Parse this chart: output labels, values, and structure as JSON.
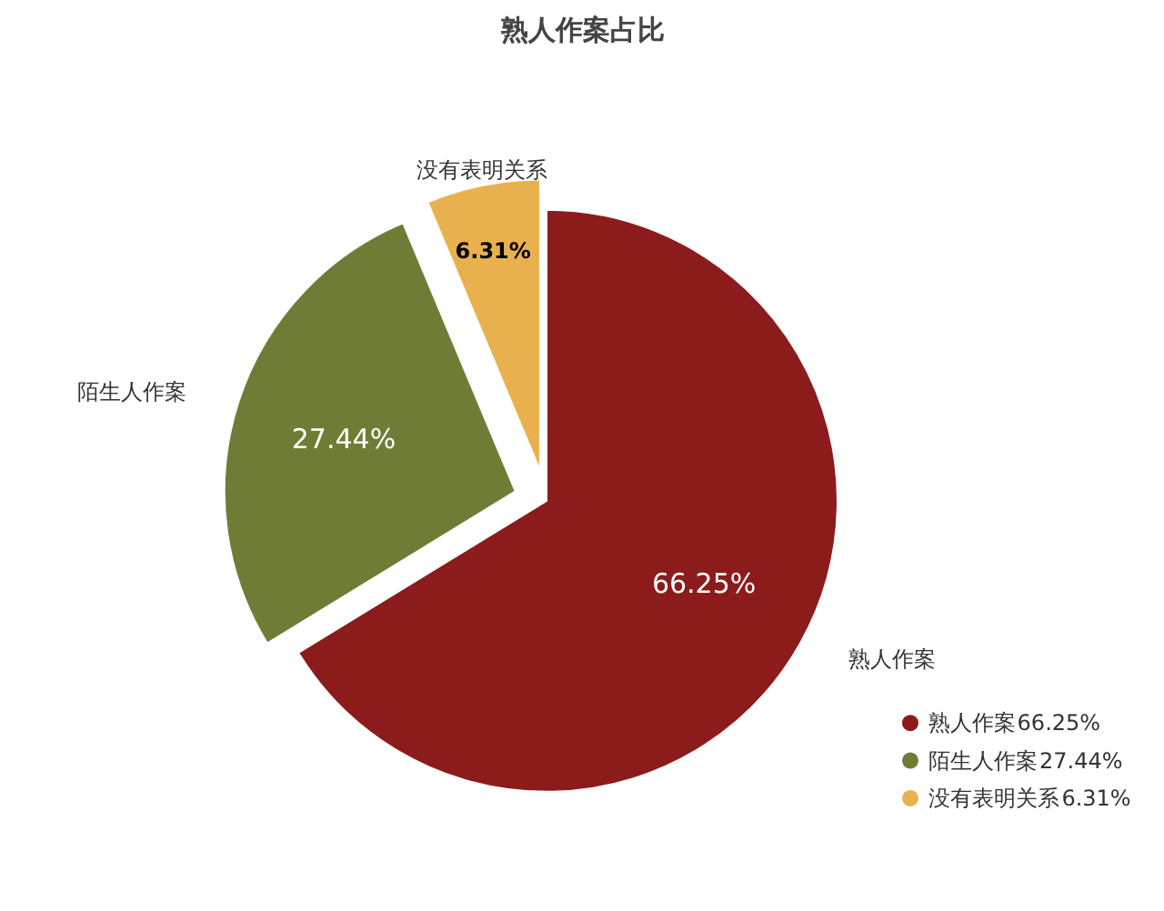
{
  "chart_data": {
    "type": "pie",
    "title": "熟人作案占比",
    "categories": [
      "熟人作案",
      "陌生人作案",
      "没有表明关系"
    ],
    "values": [
      66.25,
      27.44,
      6.31
    ],
    "value_labels": [
      "66.25%",
      "27.44%",
      "6.31%"
    ],
    "colors": [
      "#8c1c1c",
      "#6e7d35",
      "#e9b14e"
    ],
    "legend": "bottom right"
  }
}
